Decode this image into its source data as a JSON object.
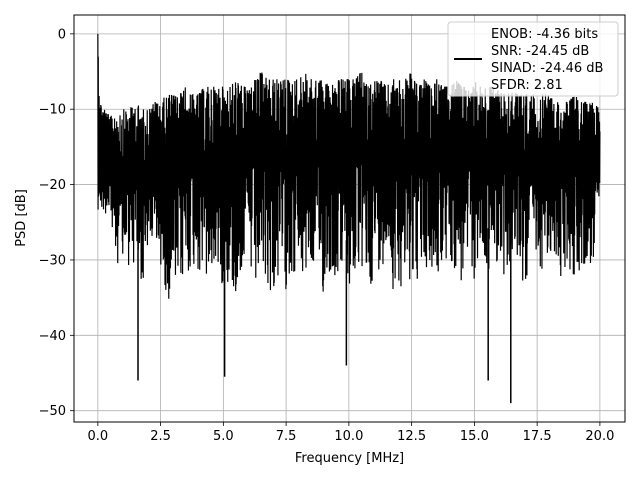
{
  "chart_data": {
    "type": "line",
    "xlabel": "Frequency [MHz]",
    "ylabel": "PSD [dB]",
    "xlim": [
      -0.95,
      21.0
    ],
    "ylim": [
      -51.5,
      2.5
    ],
    "xticks": [
      0.0,
      2.5,
      5.0,
      7.5,
      10.0,
      12.5,
      15.0,
      17.5,
      20.0
    ],
    "xtick_labels": [
      "0.0",
      "2.5",
      "5.0",
      "7.5",
      "10.0",
      "12.5",
      "15.0",
      "17.5",
      "20.0"
    ],
    "yticks": [
      0,
      -10,
      -20,
      -30,
      -40,
      -50
    ],
    "ytick_labels": [
      "0",
      "−10",
      "−20",
      "−30",
      "−40",
      "−50"
    ],
    "grid": true,
    "legend": {
      "placement": "upper-right",
      "entries": [
        "ENOB: -4.36 bits",
        "SNR: -24.45 dB",
        "SINAD: -24.46 dB",
        "SFDR: 2.81"
      ]
    },
    "series": [
      {
        "color": "#000000",
        "x": [
          0.0,
          0.05,
          0.1,
          0.3,
          0.5,
          0.75,
          1.0,
          1.25,
          1.5,
          1.75,
          2.0,
          2.25,
          2.5,
          2.75,
          3.0,
          3.25,
          3.5,
          3.75,
          4.0,
          4.25,
          4.5,
          4.75,
          5.0,
          5.25,
          5.5,
          5.75,
          6.0,
          6.25,
          6.5,
          6.75,
          7.0,
          7.25,
          7.5,
          7.75,
          8.0,
          8.25,
          8.5,
          8.75,
          9.0,
          9.25,
          9.5,
          9.75,
          10.0,
          10.25,
          10.5,
          10.75,
          11.0,
          11.25,
          11.5,
          11.75,
          12.0,
          12.25,
          12.5,
          12.75,
          13.0,
          13.25,
          13.5,
          13.75,
          14.0,
          14.25,
          14.5,
          14.75,
          15.0,
          15.25,
          15.5,
          15.75,
          16.0,
          16.25,
          16.5,
          16.75,
          17.0,
          17.25,
          17.5,
          17.75,
          18.0,
          18.25,
          18.5,
          18.75,
          19.0,
          19.25,
          19.5,
          19.75,
          20.0
        ],
        "upper": [
          0,
          -4,
          -9,
          -10,
          -11,
          -10,
          -10,
          -10,
          -9,
          -10,
          -10,
          -9,
          -9,
          -8,
          -8,
          -8,
          -7,
          -8,
          -8,
          -7,
          -7,
          -7,
          -7,
          -7,
          -6,
          -7,
          -7,
          -6,
          -5,
          -6,
          -6,
          -6,
          -6,
          -6,
          -6,
          -5,
          -6,
          -6,
          -6,
          -7,
          -6,
          -6,
          -6,
          -6,
          -5,
          -7,
          -6,
          -6,
          -7,
          -6,
          -6,
          -6,
          -5,
          -7,
          -6,
          -7,
          -6,
          -7,
          -7,
          -6,
          -7,
          -7,
          -6,
          -7,
          -7,
          -7,
          -7,
          -8,
          -7,
          -8,
          -8,
          -8,
          -8,
          -8,
          -8,
          -9,
          -9,
          -9,
          -8,
          -9,
          -9,
          -9,
          -8
        ],
        "lower": [
          -32,
          -26,
          -25,
          -24,
          -28,
          -30,
          -33,
          -31,
          -32,
          -34,
          -29,
          -30,
          -31,
          -35,
          -36,
          -34,
          -33,
          -31,
          -32,
          -34,
          -33,
          -31,
          -34,
          -33,
          -36,
          -31,
          -32,
          -35,
          -33,
          -34,
          -35,
          -33,
          -34,
          -32,
          -34,
          -33,
          -31,
          -34,
          -35,
          -32,
          -33,
          -31,
          -35,
          -33,
          -32,
          -34,
          -33,
          -31,
          -30,
          -34,
          -33,
          -35,
          -32,
          -33,
          -31,
          -34,
          -32,
          -33,
          -30,
          -32,
          -34,
          -31,
          -33,
          -30,
          -32,
          -31,
          -30,
          -33,
          -32,
          -31,
          -34,
          -30,
          -33,
          -31,
          -32,
          -30,
          -34,
          -31,
          -33,
          -32,
          -30,
          -33,
          -26
        ],
        "spikes": [
          {
            "x": 1.6,
            "y": -46
          },
          {
            "x": 5.05,
            "y": -45.5
          },
          {
            "x": 9.9,
            "y": -44
          },
          {
            "x": 15.55,
            "y": -46
          },
          {
            "x": 16.45,
            "y": -49
          }
        ]
      }
    ]
  }
}
